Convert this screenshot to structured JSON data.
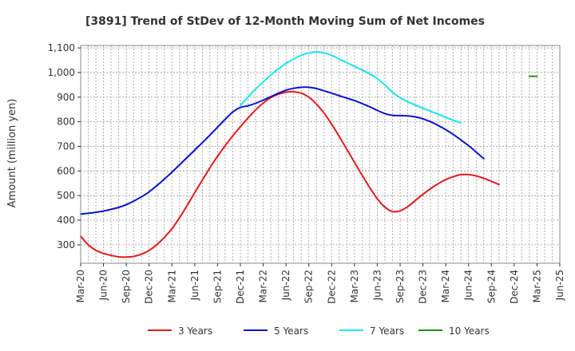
{
  "chart_data": {
    "type": "line",
    "title": "[3891]  Trend of StDev of 12-Month Moving Sum of Net Incomes",
    "xlabel": "",
    "ylabel": "Amount (million yen)",
    "ylim": [
      225,
      1110
    ],
    "yticks": [
      300,
      400,
      500,
      600,
      700,
      800,
      900,
      1000,
      1100
    ],
    "ytick_labels": [
      "300",
      "400",
      "500",
      "600",
      "700",
      "800",
      "900",
      "1,000",
      "1,100"
    ],
    "xlim": [
      "2020-03",
      "2025-06"
    ],
    "xtick_labels": [
      "Mar-20",
      "Jun-20",
      "Sep-20",
      "Dec-20",
      "Mar-21",
      "Jun-21",
      "Sep-21",
      "Dec-21",
      "Mar-22",
      "Jun-22",
      "Sep-22",
      "Dec-22",
      "Mar-23",
      "Jun-23",
      "Sep-23",
      "Dec-23",
      "Mar-24",
      "Jun-24",
      "Sep-24",
      "Dec-24",
      "Mar-25",
      "Jun-25"
    ],
    "grid": true,
    "legend_position": "bottom",
    "series": [
      {
        "name": "3 Years",
        "color": "#e31a1c",
        "points": [
          [
            "2020-03",
            335
          ],
          [
            "2020-04",
            300
          ],
          [
            "2020-05",
            278
          ],
          [
            "2020-06",
            265
          ],
          [
            "2020-07",
            257
          ],
          [
            "2020-08",
            251
          ],
          [
            "2020-09",
            250
          ],
          [
            "2020-10",
            253
          ],
          [
            "2020-11",
            262
          ],
          [
            "2020-12",
            277
          ],
          [
            "2021-01",
            300
          ],
          [
            "2021-02",
            330
          ],
          [
            "2021-03",
            365
          ],
          [
            "2021-04",
            410
          ],
          [
            "2021-05",
            460
          ],
          [
            "2021-06",
            512
          ],
          [
            "2021-07",
            563
          ],
          [
            "2021-08",
            613
          ],
          [
            "2021-09",
            660
          ],
          [
            "2021-10",
            703
          ],
          [
            "2021-11",
            743
          ],
          [
            "2021-12",
            780
          ],
          [
            "2022-01",
            815
          ],
          [
            "2022-02",
            848
          ],
          [
            "2022-03",
            876
          ],
          [
            "2022-04",
            898
          ],
          [
            "2022-05",
            912
          ],
          [
            "2022-06",
            920
          ],
          [
            "2022-07",
            922
          ],
          [
            "2022-08",
            916
          ],
          [
            "2022-09",
            900
          ],
          [
            "2022-10",
            872
          ],
          [
            "2022-11",
            835
          ],
          [
            "2022-12",
            790
          ],
          [
            "2023-01",
            740
          ],
          [
            "2023-02",
            688
          ],
          [
            "2023-03",
            635
          ],
          [
            "2023-04",
            583
          ],
          [
            "2023-05",
            533
          ],
          [
            "2023-06",
            487
          ],
          [
            "2023-07",
            453
          ],
          [
            "2023-08",
            435
          ],
          [
            "2023-09",
            438
          ],
          [
            "2023-10",
            455
          ],
          [
            "2023-11",
            480
          ],
          [
            "2023-12",
            505
          ],
          [
            "2024-01",
            528
          ],
          [
            "2024-02",
            548
          ],
          [
            "2024-03",
            565
          ],
          [
            "2024-04",
            577
          ],
          [
            "2024-05",
            585
          ],
          [
            "2024-06",
            585
          ],
          [
            "2024-07",
            580
          ],
          [
            "2024-08",
            570
          ],
          [
            "2024-09",
            558
          ],
          [
            "2024-10",
            545
          ]
        ]
      },
      {
        "name": "5 Years",
        "color": "#0a12cc",
        "points": [
          [
            "2020-03",
            425
          ],
          [
            "2020-04",
            428
          ],
          [
            "2020-05",
            432
          ],
          [
            "2020-06",
            437
          ],
          [
            "2020-07",
            444
          ],
          [
            "2020-08",
            452
          ],
          [
            "2020-09",
            463
          ],
          [
            "2020-10",
            478
          ],
          [
            "2020-11",
            495
          ],
          [
            "2020-12",
            515
          ],
          [
            "2021-01",
            540
          ],
          [
            "2021-02",
            567
          ],
          [
            "2021-03",
            595
          ],
          [
            "2021-04",
            625
          ],
          [
            "2021-05",
            655
          ],
          [
            "2021-06",
            685
          ],
          [
            "2021-07",
            715
          ],
          [
            "2021-08",
            746
          ],
          [
            "2021-09",
            778
          ],
          [
            "2021-10",
            810
          ],
          [
            "2021-11",
            840
          ],
          [
            "2021-12",
            858
          ],
          [
            "2022-01",
            865
          ],
          [
            "2022-02",
            875
          ],
          [
            "2022-03",
            888
          ],
          [
            "2022-04",
            902
          ],
          [
            "2022-05",
            916
          ],
          [
            "2022-06",
            928
          ],
          [
            "2022-07",
            936
          ],
          [
            "2022-08",
            940
          ],
          [
            "2022-09",
            940
          ],
          [
            "2022-10",
            935
          ],
          [
            "2022-11",
            926
          ],
          [
            "2022-12",
            916
          ],
          [
            "2023-01",
            906
          ],
          [
            "2023-02",
            896
          ],
          [
            "2023-03",
            886
          ],
          [
            "2023-04",
            874
          ],
          [
            "2023-05",
            861
          ],
          [
            "2023-06",
            846
          ],
          [
            "2023-07",
            833
          ],
          [
            "2023-08",
            826
          ],
          [
            "2023-09",
            825
          ],
          [
            "2023-10",
            824
          ],
          [
            "2023-11",
            820
          ],
          [
            "2023-12",
            812
          ],
          [
            "2024-01",
            800
          ],
          [
            "2024-02",
            785
          ],
          [
            "2024-03",
            768
          ],
          [
            "2024-04",
            748
          ],
          [
            "2024-05",
            726
          ],
          [
            "2024-06",
            703
          ],
          [
            "2024-07",
            677
          ],
          [
            "2024-08",
            650
          ]
        ]
      },
      {
        "name": "7 Years",
        "color": "#1de3f0",
        "points": [
          [
            "2021-12",
            866
          ],
          [
            "2022-01",
            900
          ],
          [
            "2022-02",
            933
          ],
          [
            "2022-03",
            962
          ],
          [
            "2022-04",
            990
          ],
          [
            "2022-05",
            1015
          ],
          [
            "2022-06",
            1037
          ],
          [
            "2022-07",
            1055
          ],
          [
            "2022-08",
            1070
          ],
          [
            "2022-09",
            1080
          ],
          [
            "2022-10",
            1084
          ],
          [
            "2022-11",
            1080
          ],
          [
            "2022-12",
            1070
          ],
          [
            "2023-01",
            1055
          ],
          [
            "2023-02",
            1040
          ],
          [
            "2023-03",
            1025
          ],
          [
            "2023-04",
            1010
          ],
          [
            "2023-05",
            995
          ],
          [
            "2023-06",
            975
          ],
          [
            "2023-07",
            950
          ],
          [
            "2023-08",
            920
          ],
          [
            "2023-09",
            898
          ],
          [
            "2023-10",
            882
          ],
          [
            "2023-11",
            868
          ],
          [
            "2023-12",
            855
          ],
          [
            "2024-01",
            843
          ],
          [
            "2024-02",
            831
          ],
          [
            "2024-03",
            818
          ],
          [
            "2024-04",
            806
          ],
          [
            "2024-05",
            796
          ]
        ]
      },
      {
        "name": "10 Years",
        "color": "#228b22",
        "points": [
          [
            "2025-02",
            985
          ],
          [
            "2025-03",
            985
          ]
        ]
      }
    ]
  }
}
